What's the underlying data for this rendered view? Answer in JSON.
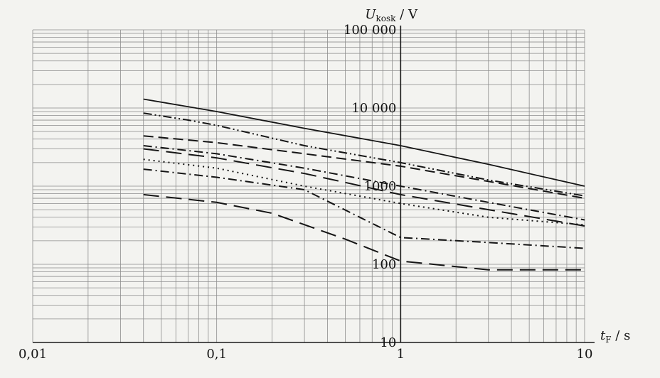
{
  "chart_data": {
    "type": "line",
    "x_scale": "log",
    "y_scale": "log",
    "grid": true,
    "legend": "none",
    "xlim": [
      0.01,
      10
    ],
    "ylim": [
      10,
      100000
    ],
    "x_ticks": [
      0.01,
      0.1,
      1,
      10
    ],
    "x_tick_labels": [
      "0,01",
      "0,1",
      "1",
      "10"
    ],
    "y_ticks": [
      10,
      100,
      1000,
      10000,
      100000
    ],
    "y_tick_labels": [
      "10",
      "100",
      "1000",
      "10 000",
      "100 000"
    ],
    "xlabel": {
      "base": "t",
      "sub": "F",
      "unit": " / s"
    },
    "ylabel": {
      "base": "U",
      "sub": "kosk",
      "unit": " / V"
    },
    "series": [
      {
        "dash": "solid",
        "x": [
          0.04,
          0.1,
          0.3,
          1,
          3,
          10
        ],
        "y": [
          13000,
          9000,
          5500,
          3300,
          1900,
          1000
        ]
      },
      {
        "dash": "dashdotdot",
        "x": [
          0.04,
          0.07,
          0.1,
          0.3,
          1,
          3,
          10
        ],
        "y": [
          8600,
          7000,
          6000,
          3300,
          2000,
          1200,
          750
        ]
      },
      {
        "dash": "dash",
        "x": [
          0.04,
          0.1,
          0.3,
          1,
          3,
          10
        ],
        "y": [
          4400,
          3600,
          2600,
          1800,
          1150,
          700
        ]
      },
      {
        "dash": "dashdot",
        "x": [
          0.04,
          0.1,
          0.3,
          1,
          3,
          10
        ],
        "y": [
          3300,
          2600,
          1700,
          1000,
          620,
          370
        ]
      },
      {
        "dash": "longdash",
        "x": [
          0.04,
          0.1,
          0.3,
          1,
          3,
          10
        ],
        "y": [
          3000,
          2300,
          1450,
          780,
          500,
          310
        ]
      },
      {
        "dash": "dot",
        "x": [
          0.04,
          0.1,
          0.3,
          1,
          3,
          10
        ],
        "y": [
          2200,
          1700,
          1000,
          600,
          400,
          320
        ]
      },
      {
        "dash": "dashdot",
        "x": [
          0.04,
          0.1,
          0.3,
          0.6,
          1,
          3,
          10
        ],
        "y": [
          1650,
          1300,
          900,
          400,
          220,
          190,
          160
        ]
      },
      {
        "dash": "longdash",
        "x": [
          0.04,
          0.1,
          0.2,
          0.5,
          1,
          3,
          10
        ],
        "y": [
          780,
          620,
          450,
          210,
          110,
          85,
          85
        ]
      }
    ]
  }
}
